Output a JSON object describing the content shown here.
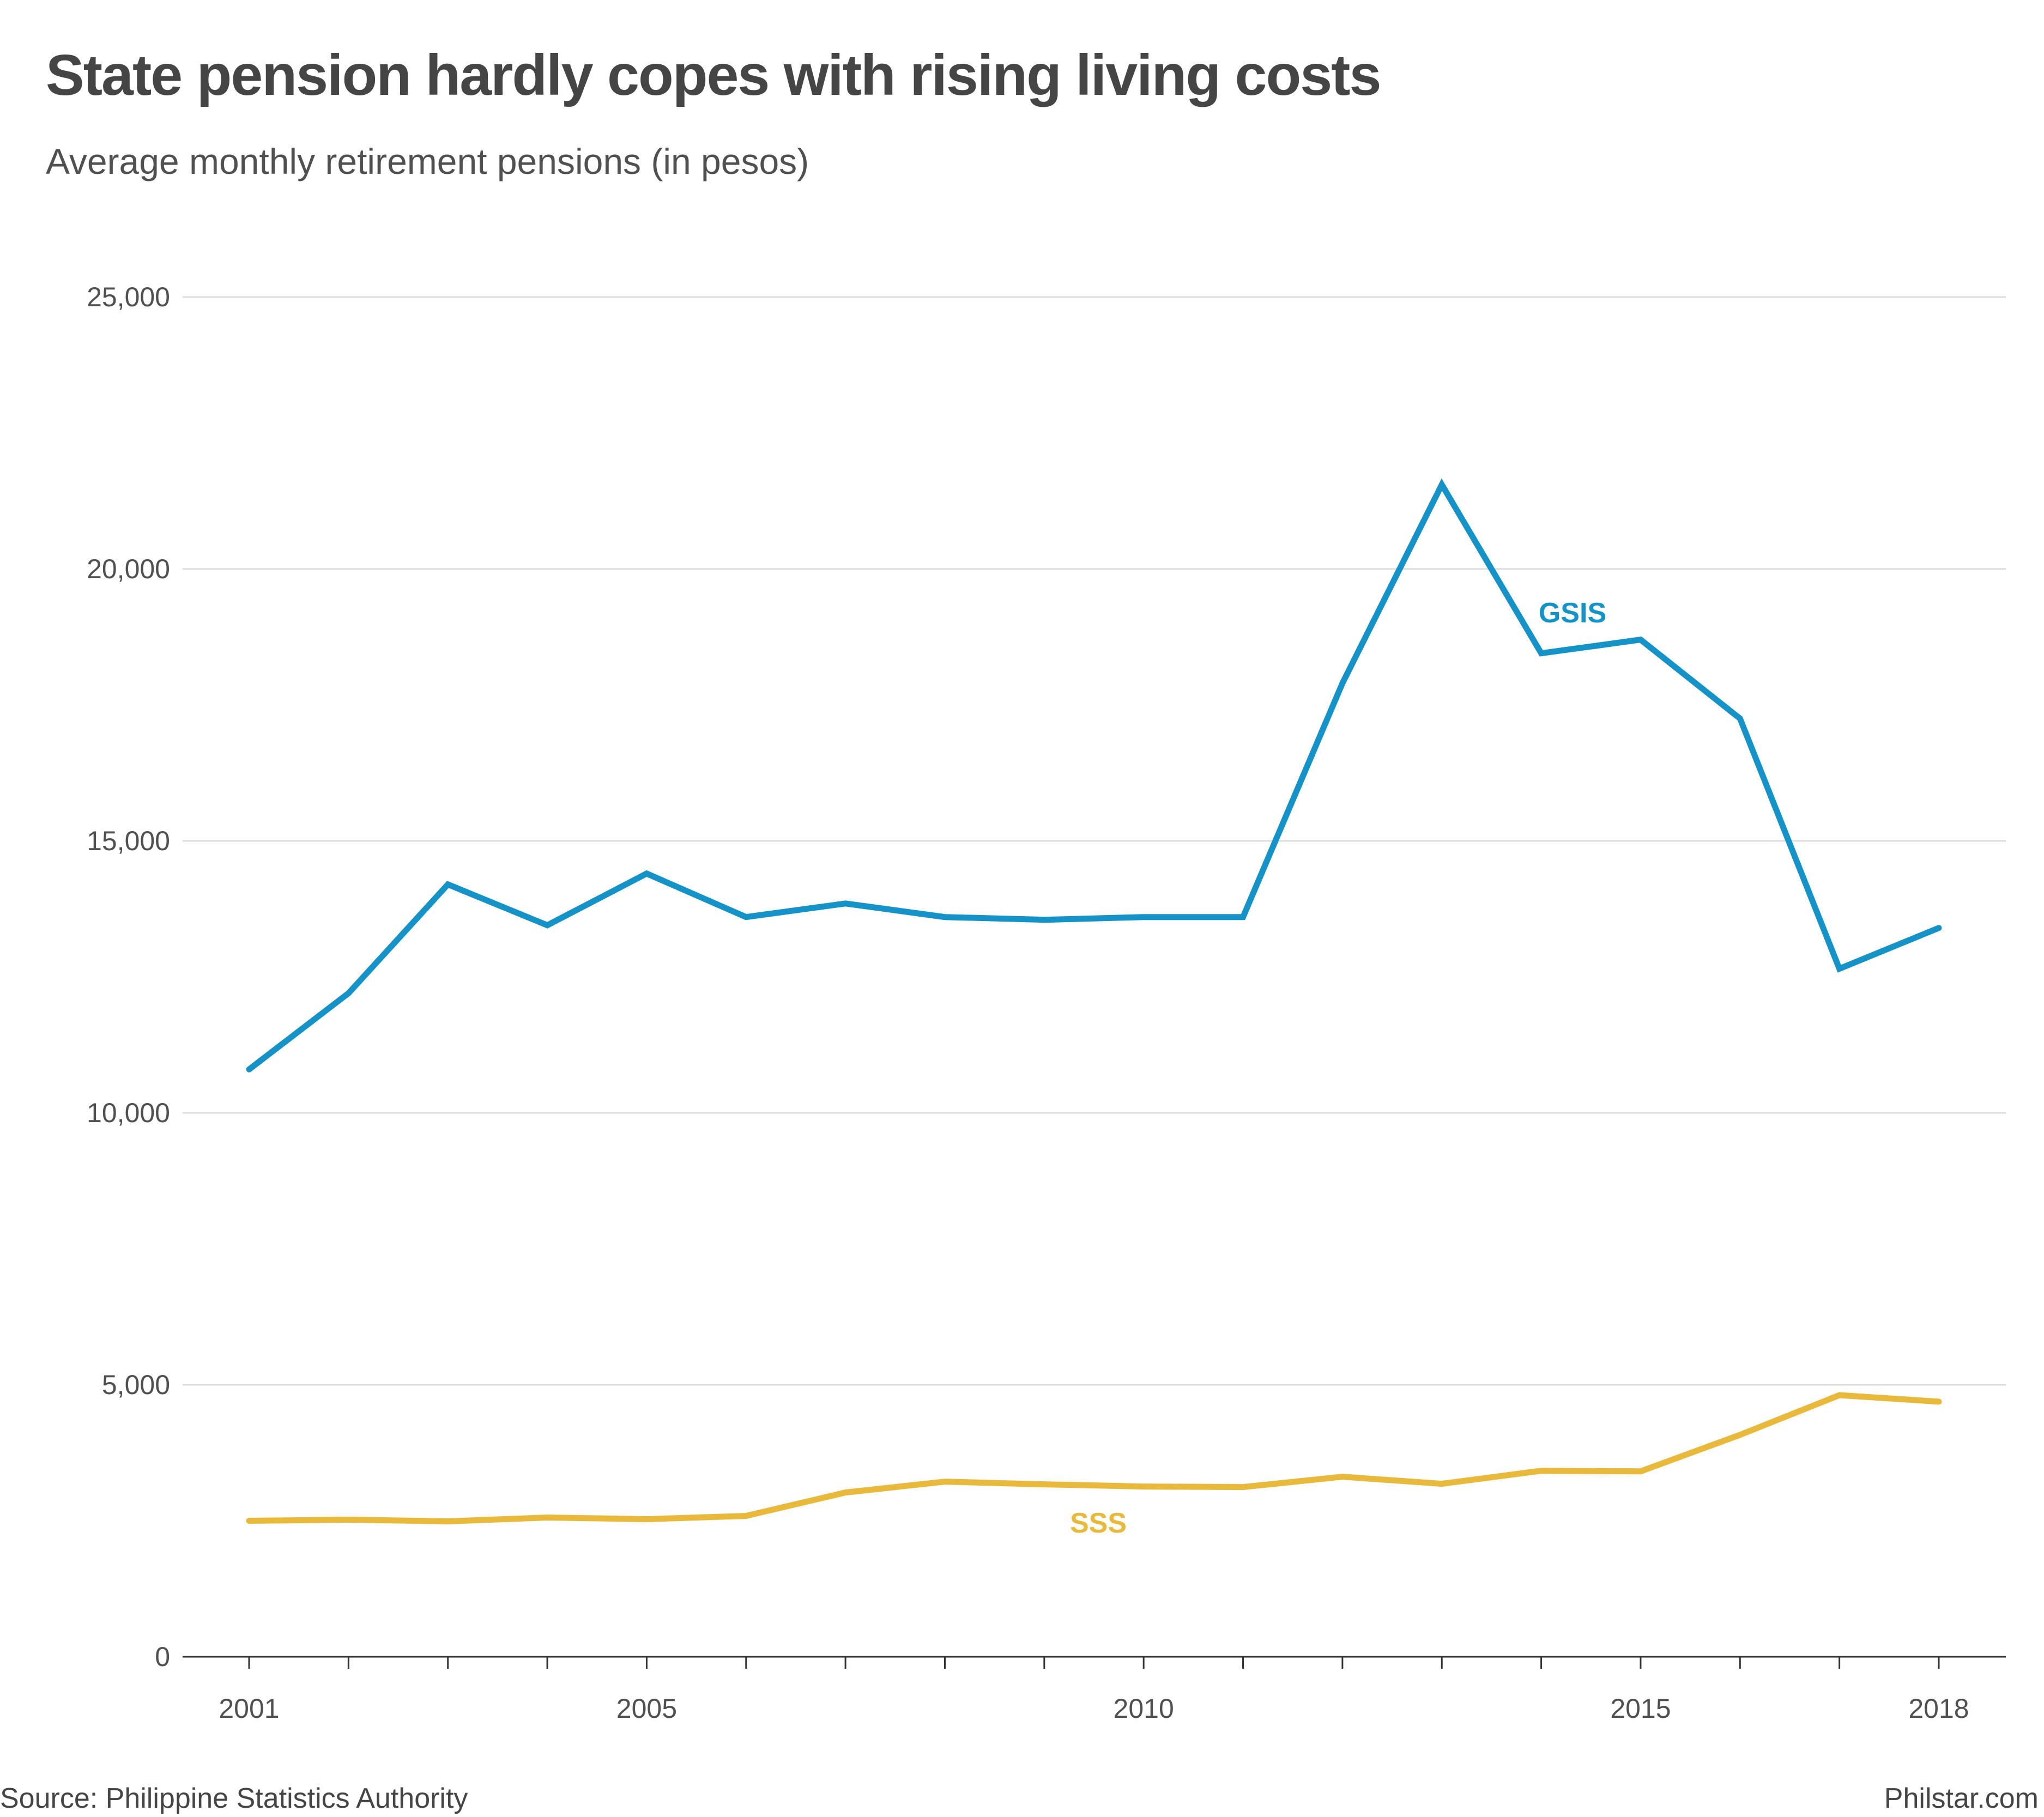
{
  "chart_data": {
    "type": "line",
    "title": "State pension hardly copes with rising living costs",
    "subtitle": "Average monthly retirement pensions (in pesos)",
    "x": [
      2001,
      2002,
      2003,
      2004,
      2005,
      2006,
      2007,
      2008,
      2009,
      2010,
      2011,
      2012,
      2013,
      2014,
      2015,
      2016,
      2017,
      2018
    ],
    "x_tick_labels": [
      "2001",
      "2005",
      "2010",
      "2015",
      "2018"
    ],
    "x_tick_values": [
      2001,
      2005,
      2010,
      2015,
      2018
    ],
    "xlim": [
      2001,
      2018
    ],
    "ylim": [
      0,
      25000
    ],
    "y_ticks": [
      0,
      5000,
      10000,
      15000,
      20000,
      25000
    ],
    "y_tick_labels": [
      "0",
      "5,000",
      "10,000",
      "15,000",
      "20,000",
      "25,000"
    ],
    "grid": true,
    "series": [
      {
        "name": "GSIS",
        "color": "#1592c7",
        "values": [
          10800,
          12200,
          14200,
          13450,
          14400,
          13600,
          13850,
          13600,
          13550,
          13600,
          13600,
          17900,
          21550,
          18450,
          18700,
          17250,
          12650,
          13400
        ]
      },
      {
        "name": "SSS",
        "color": "#e8b93a",
        "values": [
          2500,
          2520,
          2490,
          2560,
          2530,
          2590,
          3020,
          3220,
          3170,
          3130,
          3120,
          3310,
          3180,
          3420,
          3410,
          4080,
          4810,
          4690
        ]
      }
    ],
    "source": "Source: Philippine Statistics Authority",
    "brand": "Philstar.com"
  }
}
